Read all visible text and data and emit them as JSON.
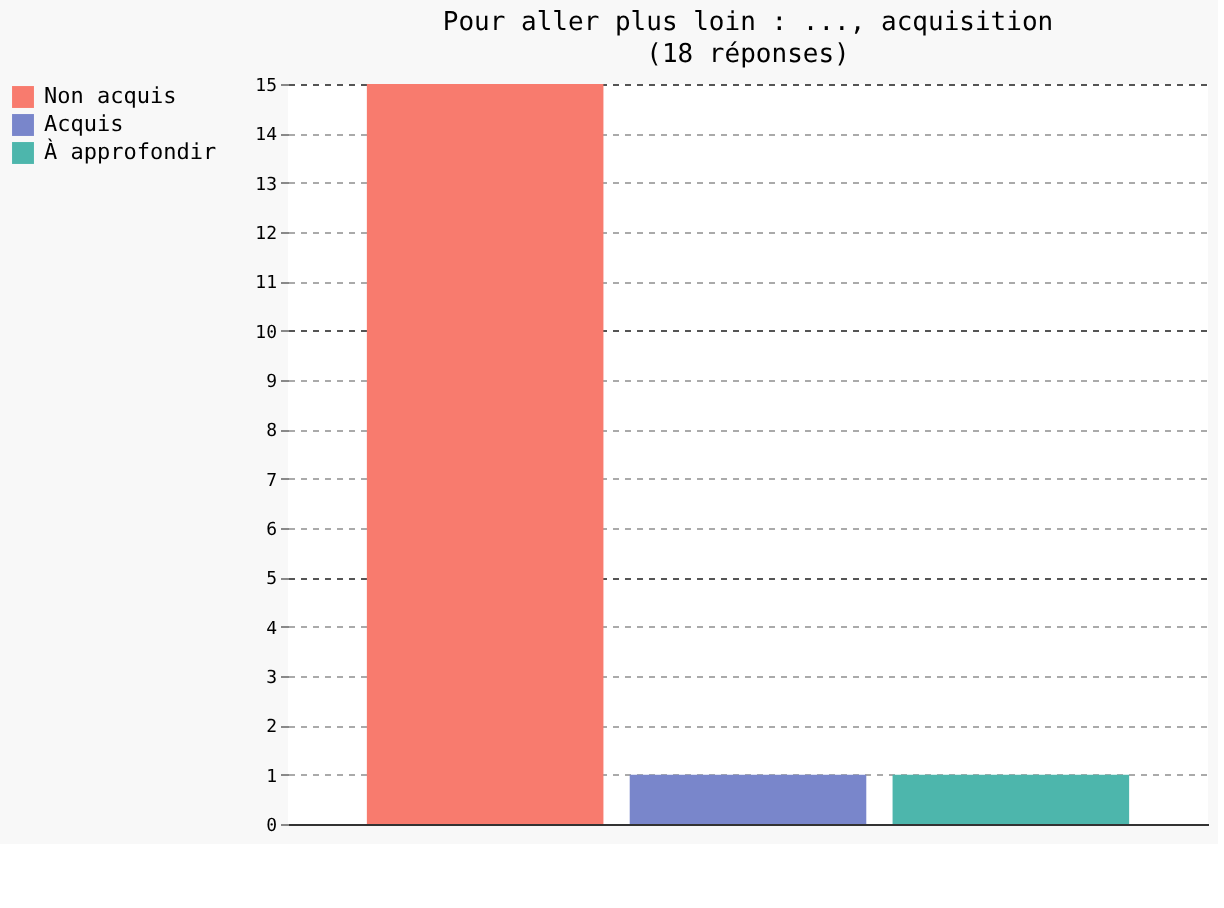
{
  "chart_data": {
    "type": "bar",
    "title": "Pour aller plus loin : ..., acquisition",
    "subtitle": "(18 réponses)",
    "categories": [
      null,
      null,
      null
    ],
    "series": [
      {
        "name": "Non acquis",
        "color": "#f87b6e",
        "values": [
          15,
          null,
          null
        ]
      },
      {
        "name": "Acquis",
        "color": "#7986cb",
        "values": [
          null,
          1,
          null
        ]
      },
      {
        "name": "À approfondir",
        "color": "#4db6ac",
        "values": [
          null,
          null,
          1
        ]
      }
    ],
    "ylim": [
      0,
      15
    ],
    "yticks": [
      0,
      1,
      2,
      3,
      4,
      5,
      6,
      7,
      8,
      9,
      10,
      11,
      12,
      13,
      14,
      15
    ],
    "grid": "y",
    "legend": "top left",
    "tick_labels": "y"
  }
}
